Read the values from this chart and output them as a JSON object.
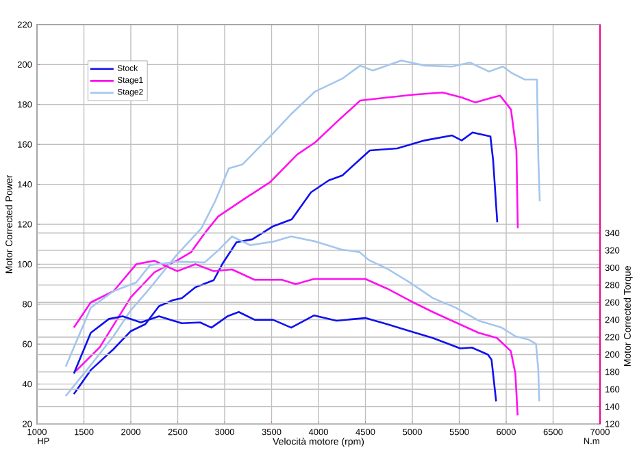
{
  "chart_data": {
    "type": "line",
    "xlabel": "Velocità motore (rpm)",
    "ylabel": "Motor Corrected Power",
    "y2label": "Motor Corrected Torque",
    "annotations": [
      "HP",
      "N.m"
    ],
    "xlim": [
      1000,
      7000
    ],
    "xticks": [
      1000,
      1500,
      2000,
      2500,
      3000,
      3500,
      4000,
      4500,
      5000,
      5500,
      6000,
      6500,
      7000
    ],
    "ylim": [
      20,
      220
    ],
    "yticks": [
      20,
      40,
      60,
      80,
      100,
      120,
      140,
      160,
      180,
      200,
      220
    ],
    "y2lim": [
      120,
      580
    ],
    "y2ticks": [
      120,
      140,
      160,
      180,
      200,
      220,
      240,
      260,
      280,
      300,
      320,
      340
    ],
    "grid": true,
    "legend": "top left",
    "series": [
      {
        "name": "Stock",
        "color": "#1010f0",
        "x": [
          1393,
          1573,
          1816,
          2000,
          2155,
          2300,
          2447,
          2544,
          2689,
          2883,
          2980,
          3126,
          3296,
          3515,
          3715,
          3920,
          4110,
          4255,
          4547,
          4839,
          5131,
          5423,
          5526,
          5642,
          5832,
          5861,
          5905
        ],
        "values": [
          35,
          47,
          57.5,
          66.5,
          70,
          79,
          82,
          83,
          88.5,
          92,
          100.5,
          111,
          112.5,
          119,
          122.5,
          136,
          142,
          144.5,
          157,
          158,
          162,
          164.5,
          162,
          166,
          164,
          152,
          121
        ]
      },
      {
        "name": "Stage1",
        "color": "#ff10f0",
        "x": [
          1403,
          1670,
          2000,
          2252,
          2495,
          2641,
          2786,
          2932,
          3234,
          3482,
          3774,
          3964,
          4212,
          4445,
          4737,
          5029,
          5321,
          5526,
          5672,
          5818,
          5934,
          6051,
          6109,
          6124
        ],
        "values": [
          46,
          58.5,
          83.5,
          96,
          102,
          106,
          115.5,
          124,
          133.5,
          141,
          155,
          161,
          172,
          182,
          183.5,
          185,
          186,
          183.5,
          181,
          183,
          184.5,
          177.5,
          157,
          118
        ]
      },
      {
        "name": "Stage2",
        "color": "#a4c6ee",
        "x": [
          1306,
          1573,
          1816,
          2000,
          2204,
          2495,
          2752,
          2898,
          3044,
          3190,
          3336,
          3526,
          3715,
          3964,
          4255,
          4445,
          4577,
          4883,
          5131,
          5423,
          5613,
          5818,
          5964,
          6051,
          6197,
          6328,
          6343,
          6358
        ],
        "values": [
          34,
          49.5,
          64,
          77,
          88,
          105,
          118,
          131.5,
          148,
          150,
          157,
          166,
          175.5,
          186.5,
          193,
          199.5,
          197,
          202,
          199.5,
          199,
          201,
          196.5,
          199,
          196,
          192.5,
          192.5,
          152,
          131.5
        ]
      },
      {
        "axis": "y2",
        "color": "#1010f0",
        "x": [
          1393,
          1573,
          1767,
          1913,
          2107,
          2300,
          2544,
          2738,
          2859,
          3029,
          3150,
          3320,
          3515,
          3709,
          3951,
          4192,
          4500,
          4730,
          4974,
          5218,
          5511,
          5634,
          5805,
          5844,
          5893
        ],
        "values": [
          178,
          225,
          241,
          244,
          237,
          244,
          236,
          237,
          231,
          244,
          249,
          240,
          240,
          231,
          245,
          239,
          242,
          235,
          227,
          219,
          207,
          208,
          200,
          194,
          146
        ]
      },
      {
        "axis": "y2",
        "color": "#ff10f0",
        "x": [
          1393,
          1573,
          1816,
          2058,
          2252,
          2495,
          2689,
          2883,
          3078,
          3320,
          3612,
          3757,
          3951,
          4192,
          4500,
          4730,
          4974,
          5218,
          5462,
          5707,
          5902,
          6049,
          6098,
          6122
        ],
        "values": [
          231,
          260,
          273,
          304,
          308,
          296,
          304,
          296,
          298,
          286,
          286,
          281,
          287,
          287,
          287,
          276,
          262,
          249,
          237,
          225,
          219,
          204,
          178,
          130
        ]
      },
      {
        "axis": "y2",
        "color": "#a4c6ee",
        "x": [
          1306,
          1573,
          1816,
          2058,
          2204,
          2495,
          2786,
          2932,
          3078,
          3272,
          3515,
          3709,
          3975,
          4241,
          4437,
          4534,
          4730,
          4974,
          5218,
          5462,
          5707,
          5951,
          6098,
          6244,
          6318,
          6342,
          6352
        ],
        "values": [
          186,
          254,
          273,
          283,
          303,
          307,
          306,
          320,
          336,
          326,
          330,
          336,
          330,
          321,
          318,
          309,
          299,
          283,
          265,
          254,
          239,
          231,
          221,
          217,
          212,
          183,
          146
        ]
      }
    ]
  }
}
